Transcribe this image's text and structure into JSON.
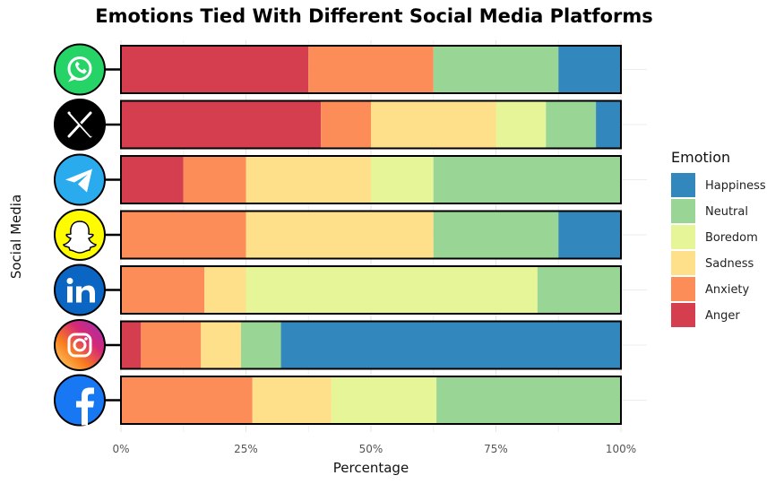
{
  "chart_data": {
    "type": "bar",
    "orientation": "horizontal",
    "stacked": "percent",
    "title": "Emotions Tied With Different Social Media Platforms",
    "xlabel": "Percentage",
    "ylabel": "Social Media",
    "xlim": [
      0,
      100
    ],
    "x_ticks": [
      "0%",
      "25%",
      "50%",
      "75%",
      "100%"
    ],
    "grid": true,
    "legend": {
      "title": "Emotion",
      "position": "right"
    },
    "categories": [
      "WhatsApp",
      "X",
      "Telegram",
      "Snapchat",
      "LinkedIn",
      "Instagram",
      "Facebook"
    ],
    "series": [
      {
        "name": "Anger",
        "color": "#D53E4F",
        "values": [
          37.5,
          40,
          12.5,
          0,
          0,
          4,
          0
        ]
      },
      {
        "name": "Anxiety",
        "color": "#FC8D59",
        "values": [
          25,
          10,
          12.5,
          25,
          16.7,
          12,
          26.3
        ]
      },
      {
        "name": "Sadness",
        "color": "#FEE08B",
        "values": [
          0,
          25,
          25,
          37.5,
          8.3,
          8,
          15.8
        ]
      },
      {
        "name": "Boredom",
        "color": "#E6F598",
        "values": [
          0,
          10,
          12.5,
          0,
          58.3,
          0,
          21
        ]
      },
      {
        "name": "Neutral",
        "color": "#99D594",
        "values": [
          25,
          10,
          37.5,
          25,
          16.7,
          8,
          36.9
        ]
      },
      {
        "name": "Happiness",
        "color": "#3288BD",
        "values": [
          12.5,
          5,
          0,
          12.5,
          0,
          68,
          0
        ]
      }
    ],
    "legend_order": [
      "Happiness",
      "Neutral",
      "Boredom",
      "Sadness",
      "Anxiety",
      "Anger"
    ],
    "platform_icons": [
      {
        "name": "whatsapp-icon",
        "color": "#25D366"
      },
      {
        "name": "x-icon",
        "color": "#000000"
      },
      {
        "name": "telegram-icon",
        "color": "#2AABEE"
      },
      {
        "name": "snapchat-icon",
        "color": "#FFFC00"
      },
      {
        "name": "linkedin-icon",
        "color": "#0A66C2"
      },
      {
        "name": "instagram-icon",
        "color": "#E1306C"
      },
      {
        "name": "facebook-icon",
        "color": "#1877F2"
      }
    ]
  }
}
